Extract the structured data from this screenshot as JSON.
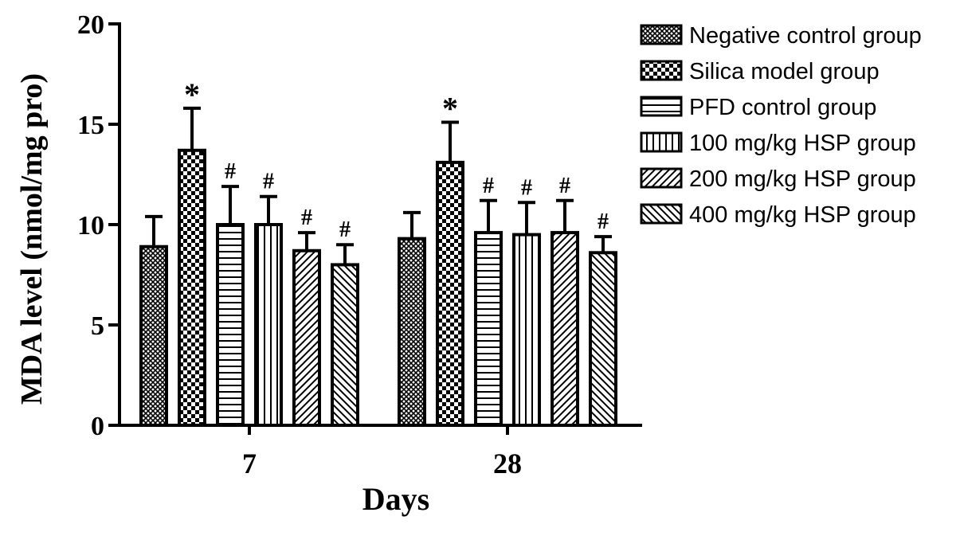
{
  "chart_data": {
    "type": "bar",
    "title": "",
    "xlabel": "Days",
    "ylabel": "MDA level (nmol/mg pro)",
    "ylim": [
      0,
      20
    ],
    "yticks": [
      0,
      5,
      10,
      15,
      20
    ],
    "categories": [
      "7",
      "28"
    ],
    "legend_position": "right",
    "grid": false,
    "series": [
      {
        "name": "Negative control group",
        "pattern": "crosshatch-fine",
        "values": [
          8.9,
          9.3
        ],
        "errors": [
          1.5,
          1.3
        ],
        "markers": [
          "",
          ""
        ]
      },
      {
        "name": "Silica model group",
        "pattern": "checker",
        "values": [
          13.7,
          13.1
        ],
        "errors": [
          2.1,
          2.0
        ],
        "markers": [
          "*",
          "*"
        ]
      },
      {
        "name": "PFD control group",
        "pattern": "horizontal-lines",
        "values": [
          10.0,
          9.6
        ],
        "errors": [
          1.9,
          1.6
        ],
        "markers": [
          "#",
          "#"
        ]
      },
      {
        "name": "100 mg/kg HSP group",
        "pattern": "vertical-lines",
        "values": [
          10.0,
          9.5
        ],
        "errors": [
          1.4,
          1.6
        ],
        "markers": [
          "#",
          "#"
        ]
      },
      {
        "name": "200 mg/kg HSP group",
        "pattern": "diagonal-up",
        "values": [
          8.7,
          9.6
        ],
        "errors": [
          0.9,
          1.6
        ],
        "markers": [
          "#",
          "#"
        ]
      },
      {
        "name": "400 mg/kg HSP group",
        "pattern": "diagonal-down",
        "values": [
          8.0,
          8.6
        ],
        "errors": [
          1.0,
          0.8
        ],
        "markers": [
          "#",
          "#"
        ]
      }
    ]
  }
}
